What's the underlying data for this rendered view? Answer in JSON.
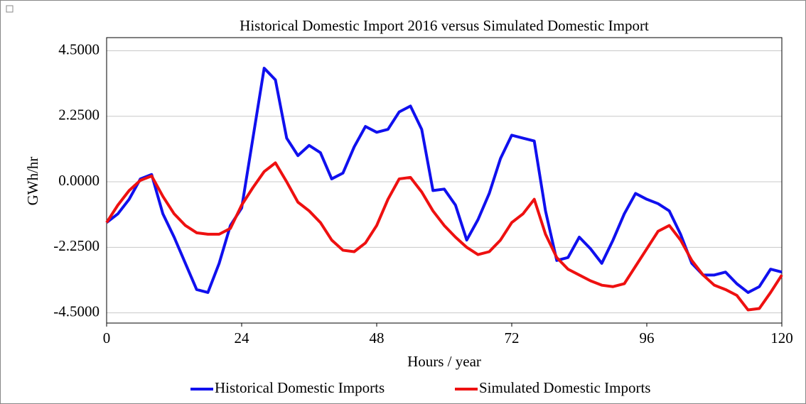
{
  "chart_data": {
    "type": "line",
    "title": "Historical Domestic Import 2016 versus Simulated Domestic Import",
    "xlabel": "Hours / year",
    "ylabel": "GWh/hr",
    "x": [
      0,
      2,
      4,
      6,
      8,
      10,
      12,
      14,
      16,
      18,
      20,
      22,
      24,
      26,
      28,
      30,
      32,
      34,
      36,
      38,
      40,
      42,
      44,
      46,
      48,
      50,
      52,
      54,
      56,
      58,
      60,
      62,
      64,
      66,
      68,
      70,
      72,
      74,
      76,
      78,
      80,
      82,
      84,
      86,
      88,
      90,
      92,
      94,
      96,
      98,
      100,
      102,
      104,
      106,
      108,
      110,
      112,
      114,
      116,
      118,
      120
    ],
    "series": [
      {
        "name": "Historical Domestic Imports",
        "color": "#1010ee",
        "values": [
          -1.4,
          -1.1,
          -0.6,
          0.1,
          0.25,
          -1.1,
          -1.9,
          -2.8,
          -3.7,
          -3.8,
          -2.8,
          -1.5,
          -0.9,
          1.5,
          3.9,
          3.5,
          1.5,
          0.9,
          1.25,
          1.0,
          0.1,
          0.3,
          1.2,
          1.9,
          1.7,
          1.8,
          2.4,
          2.6,
          1.8,
          -0.3,
          -0.25,
          -0.8,
          -2.0,
          -1.3,
          -0.4,
          0.8,
          1.6,
          1.5,
          1.4,
          -1.0,
          -2.7,
          -2.6,
          -1.9,
          -2.3,
          -2.8,
          -2.0,
          -1.1,
          -0.4,
          -0.6,
          -0.75,
          -1.0,
          -1.8,
          -2.8,
          -3.2,
          -3.2,
          -3.1,
          -3.5,
          -3.8,
          -3.6,
          -3.0,
          -3.1
        ]
      },
      {
        "name": "Simulated Domestic Imports",
        "color": "#ee1010",
        "values": [
          -1.4,
          -0.8,
          -0.3,
          0.05,
          0.2,
          -0.5,
          -1.1,
          -1.5,
          -1.75,
          -1.8,
          -1.8,
          -1.6,
          -0.8,
          -0.2,
          0.35,
          0.65,
          0.0,
          -0.7,
          -1.0,
          -1.4,
          -2.0,
          -2.35,
          -2.4,
          -2.1,
          -1.5,
          -0.6,
          0.1,
          0.15,
          -0.35,
          -1.0,
          -1.5,
          -1.9,
          -2.25,
          -2.5,
          -2.4,
          -2.0,
          -1.4,
          -1.1,
          -0.6,
          -1.8,
          -2.6,
          -3.0,
          -3.2,
          -3.4,
          -3.55,
          -3.6,
          -3.5,
          -2.9,
          -2.3,
          -1.7,
          -1.5,
          -2.0,
          -2.7,
          -3.2,
          -3.55,
          -3.7,
          -3.9,
          -4.4,
          -4.35,
          -3.8,
          -3.2
        ]
      }
    ],
    "xlim": [
      0,
      120
    ],
    "xticks": [
      0,
      24,
      48,
      72,
      96,
      120
    ],
    "ylim": [
      -4.85,
      4.95
    ],
    "yticks": [
      {
        "value": -4.5,
        "label": "-4.5000"
      },
      {
        "value": -2.25,
        "label": "-2.2500"
      },
      {
        "value": 0,
        "label": "0.0000"
      },
      {
        "value": 2.25,
        "label": "2.2500"
      },
      {
        "value": 4.5,
        "label": "4.5000"
      }
    ],
    "grid": true
  }
}
